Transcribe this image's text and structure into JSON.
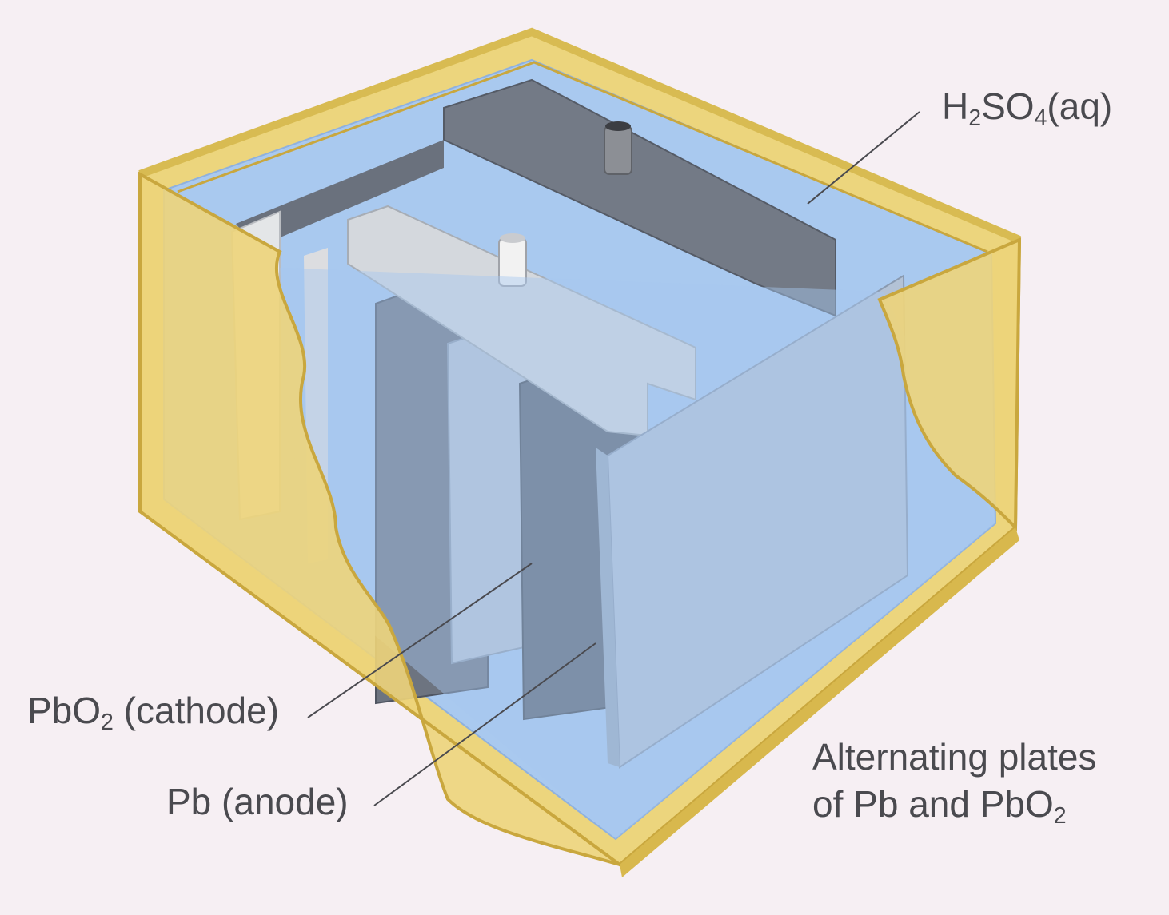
{
  "labels": {
    "electrolyte": {
      "base": "H",
      "sub1": "2",
      "mid": "SO",
      "sub2": "4",
      "tail": "(aq)"
    },
    "cathode": {
      "base": "PbO",
      "sub": "2",
      "tail": " (cathode)"
    },
    "anode": {
      "text": "Pb (anode)"
    },
    "plates": {
      "line1": "Alternating plates",
      "line2_base": "of Pb and PbO",
      "line2_sub": "2"
    }
  },
  "colors": {
    "background": "#f6eff3",
    "casing": "#e9cf6e",
    "casing_edge": "#c9a73e",
    "electrolyte": "#9ec2ee",
    "pb_plate": "#5f6672",
    "pbo2_plate": "#c6cfdb",
    "text": "#4a4a4f"
  }
}
